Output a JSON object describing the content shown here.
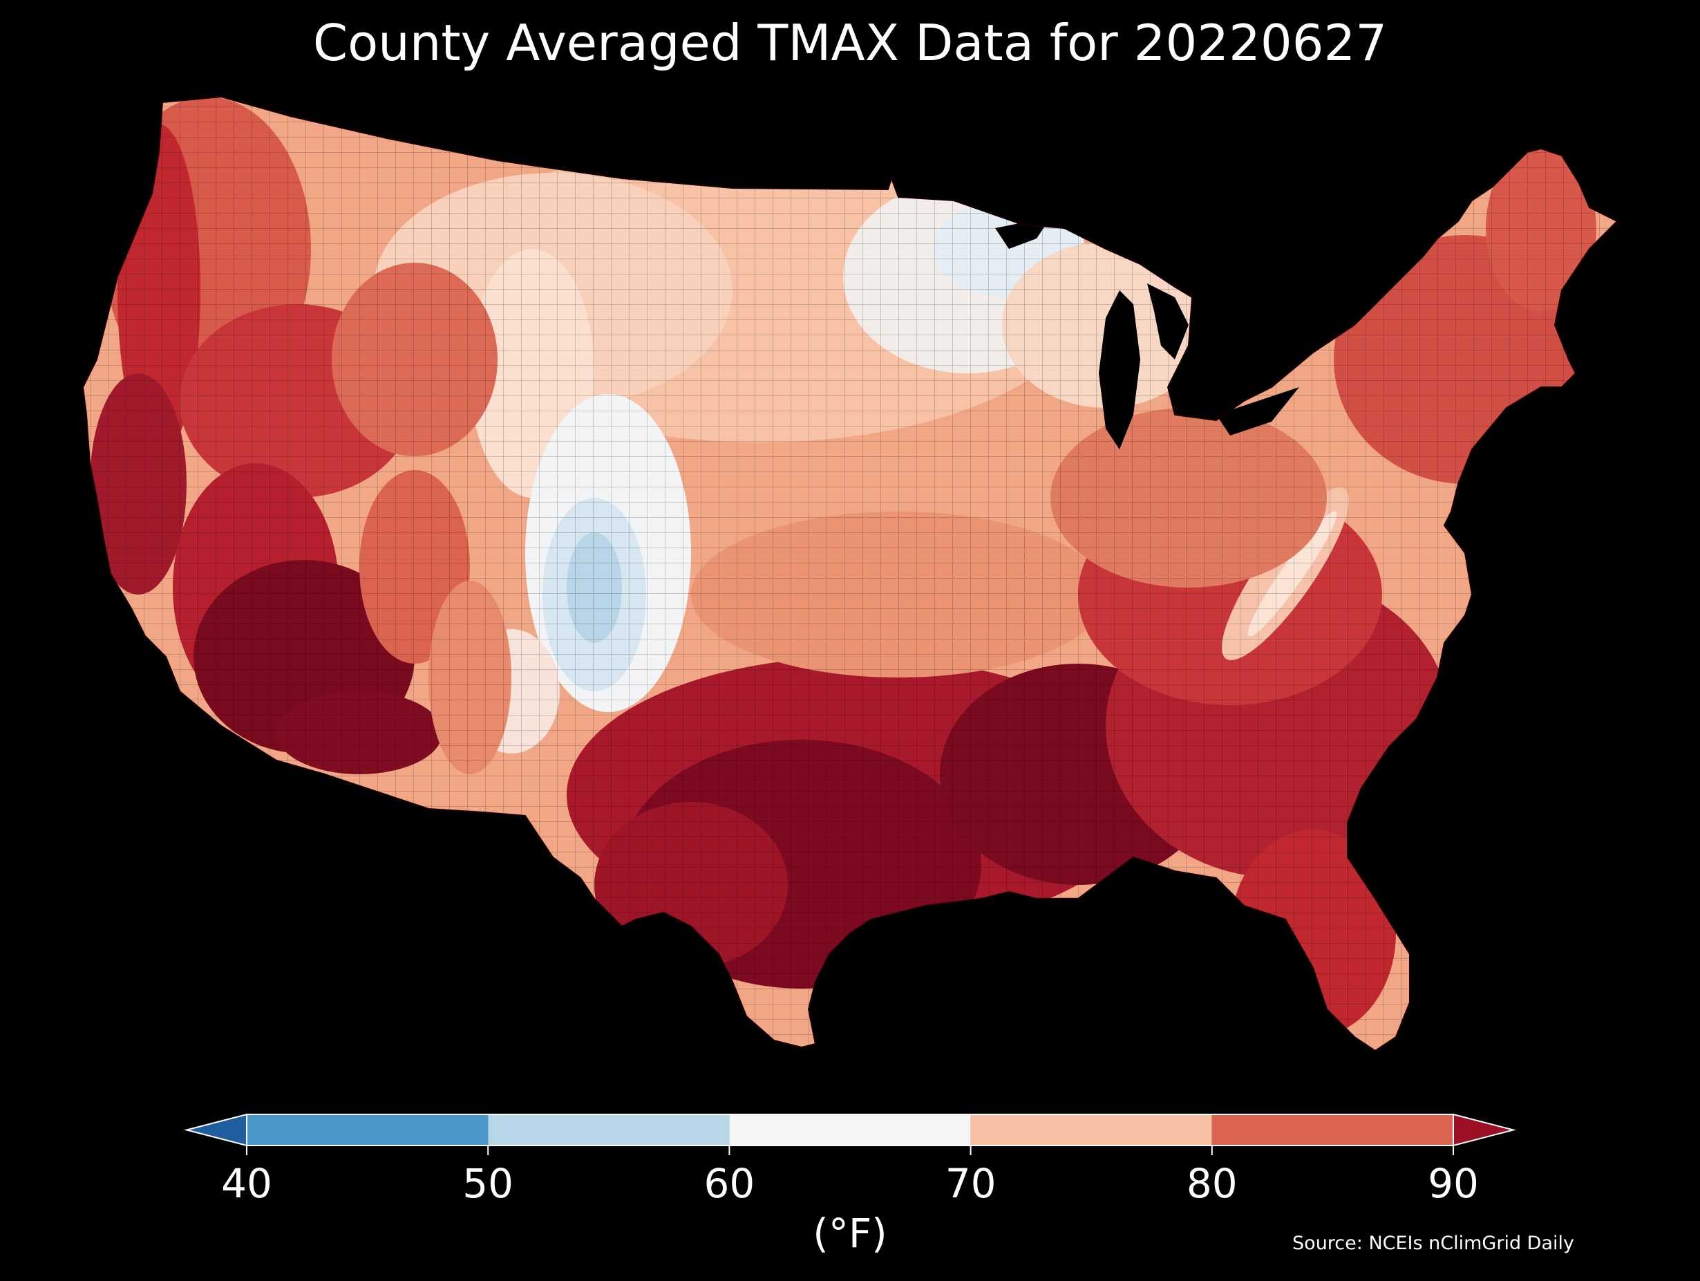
{
  "title": "County Averaged TMAX Data for 20220627",
  "source": "Source: NCEIs nClimGrid Daily",
  "colorbar": {
    "unit_label": "(°F)",
    "ticks": [
      "40",
      "50",
      "60",
      "70",
      "80",
      "90"
    ],
    "bins": [
      {
        "range": "<40",
        "color": "#1f5fa0"
      },
      {
        "range": "40-50",
        "color": "#4a98c9"
      },
      {
        "range": "50-60",
        "color": "#b6d7e8"
      },
      {
        "range": "60-70",
        "color": "#f5f5f5"
      },
      {
        "range": "70-80",
        "color": "#f8c0a2"
      },
      {
        "range": "80-90",
        "color": "#db6451"
      },
      {
        "range": ">90",
        "color": "#9b1025"
      }
    ],
    "extend": "both"
  },
  "map": {
    "region": "Contiguous United States",
    "unit": "county",
    "variable": "TMAX",
    "date": "20220627",
    "background": "#000000",
    "palette": "RdBu_r"
  }
}
